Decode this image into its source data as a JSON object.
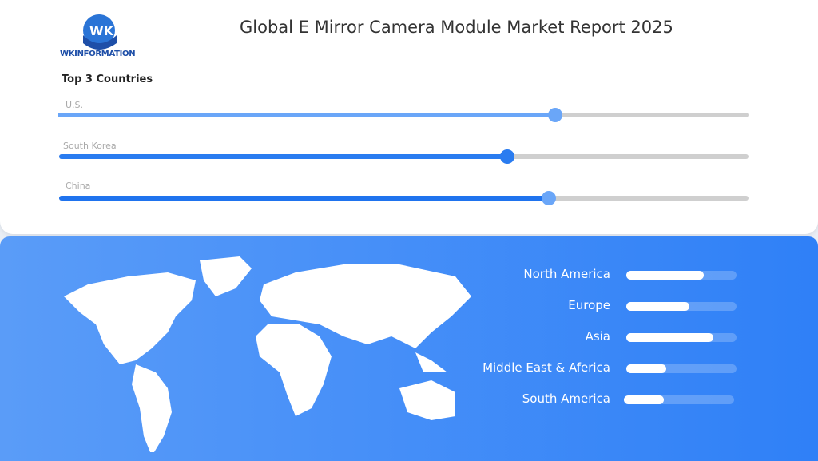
{
  "header": {
    "logo_text": "WKINFORMATION",
    "title": "Global E Mirror Camera Module Market Report 2025"
  },
  "top_countries": {
    "heading": "Top 3 Countries",
    "items": [
      {
        "label": "U.S.",
        "value_pct": 72,
        "fill": "#6aa6f8",
        "knob": "#6aa6f8"
      },
      {
        "label": "South Korea",
        "value_pct": 65,
        "fill": "#2a7cf0",
        "knob": "#2a7cf0"
      },
      {
        "label": "China",
        "value_pct": 71,
        "fill": "#1f73ee",
        "knob": "#6aa6f8"
      }
    ]
  },
  "regions": [
    {
      "label": "North America",
      "value_pct": 70
    },
    {
      "label": "Europe",
      "value_pct": 57
    },
    {
      "label": "Asia",
      "value_pct": 79
    },
    {
      "label": "Middle East & Aferica",
      "value_pct": 36
    },
    {
      "label": "South America",
      "value_pct": 36
    }
  ],
  "colors": {
    "accent": "#2f80f7",
    "track": "#cfcfcf"
  }
}
